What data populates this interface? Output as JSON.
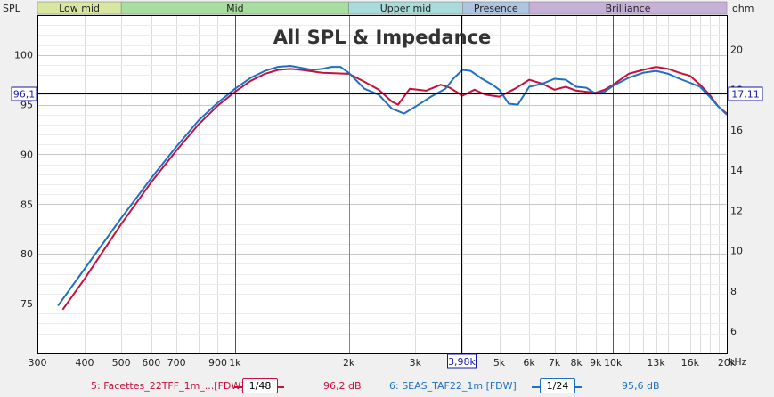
{
  "axes": {
    "left_label": "SPL",
    "right_label": "ohm",
    "x_unit_label": "kHz"
  },
  "bands": [
    {
      "label": "Low mid",
      "color": "#d8e7a0"
    },
    {
      "label": "Mid",
      "color": "#a8dfa0"
    },
    {
      "label": "Upper mid",
      "color": "#a8dcd8"
    },
    {
      "label": "Presence",
      "color": "#aec4e2"
    },
    {
      "label": "Brilliance",
      "color": "#c6b0d8"
    }
  ],
  "cursor": {
    "x_readout": "3,98k",
    "spl_readout": "96,1",
    "ohm_readout": "17,11"
  },
  "legend": [
    {
      "label": "5: Facettes_22TFF_1m_...[FDW]",
      "smoothing": "1/48",
      "value": "96,2 dB",
      "color": "#c8103c"
    },
    {
      "label": "6: SEAS_TAF22_1m [FDW]",
      "smoothing": "1/24",
      "value": "95,6 dB",
      "color": "#1f6fc4"
    }
  ],
  "chart_data": {
    "type": "line",
    "title": "All SPL & Impedance",
    "x_scale": "log",
    "xlim": [
      300,
      20000
    ],
    "ylim": [
      70,
      104
    ],
    "y2lim": [
      4.9,
      21.7
    ],
    "x_ticks": [
      {
        "v": 300,
        "label": "300"
      },
      {
        "v": 400,
        "label": "400"
      },
      {
        "v": 500,
        "label": "500"
      },
      {
        "v": 600,
        "label": "600"
      },
      {
        "v": 700,
        "label": "700"
      },
      {
        "v": 900,
        "label": "900"
      },
      {
        "v": 1000,
        "label": "1k"
      },
      {
        "v": 2000,
        "label": "2k"
      },
      {
        "v": 3000,
        "label": "3k"
      },
      {
        "v": 5000,
        "label": "5k"
      },
      {
        "v": 6000,
        "label": "6k"
      },
      {
        "v": 7000,
        "label": "7k"
      },
      {
        "v": 8000,
        "label": "8k"
      },
      {
        "v": 9000,
        "label": "9k"
      },
      {
        "v": 10000,
        "label": "10k"
      },
      {
        "v": 13000,
        "label": "13k"
      },
      {
        "v": 16000,
        "label": "16k"
      },
      {
        "v": 20000,
        "label": "20k"
      }
    ],
    "y_ticks": [
      75,
      80,
      85,
      90,
      95,
      100
    ],
    "y2_ticks": [
      6,
      8,
      10,
      12,
      14,
      16,
      18,
      20
    ],
    "band_edges": [
      300,
      500,
      2000,
      4000,
      6000,
      20000
    ],
    "cursor_x": 3980,
    "cursor_y": 96.1,
    "series": [
      {
        "name": "5: Facettes_22TFF_1m_...[FDW]",
        "color": "#c8103c",
        "x": [
          350,
          400,
          500,
          600,
          700,
          800,
          900,
          1000,
          1100,
          1200,
          1300,
          1400,
          1500,
          1700,
          2000,
          2200,
          2400,
          2600,
          2700,
          2900,
          3200,
          3500,
          3700,
          4000,
          4300,
          4600,
          5000,
          5500,
          6000,
          6500,
          7000,
          7500,
          8000,
          8500,
          9000,
          9500,
          10000,
          11000,
          12000,
          13000,
          14000,
          15000,
          16000,
          17000,
          18000,
          19000,
          20000
        ],
        "y": [
          74.4,
          77.5,
          83.0,
          87.2,
          90.4,
          93.0,
          94.9,
          96.3,
          97.4,
          98.1,
          98.5,
          98.6,
          98.5,
          98.2,
          98.1,
          97.3,
          96.5,
          95.3,
          95.0,
          96.6,
          96.4,
          97.0,
          96.7,
          95.9,
          96.5,
          96.0,
          95.8,
          96.6,
          97.5,
          97.1,
          96.5,
          96.8,
          96.4,
          96.3,
          96.2,
          96.5,
          97.0,
          98.1,
          98.5,
          98.8,
          98.6,
          98.2,
          97.9,
          97.0,
          96.0,
          94.8,
          94.1
        ]
      },
      {
        "name": "6: SEAS_TAF22_1m [FDW]",
        "color": "#1f6fc4",
        "x": [
          340,
          400,
          500,
          600,
          700,
          800,
          900,
          1000,
          1100,
          1200,
          1300,
          1400,
          1500,
          1600,
          1700,
          1800,
          1900,
          2000,
          2200,
          2400,
          2600,
          2800,
          3000,
          3300,
          3600,
          3800,
          4000,
          4200,
          4500,
          4800,
          5000,
          5300,
          5600,
          6000,
          6500,
          7000,
          7500,
          8000,
          8500,
          9000,
          9500,
          10000,
          11000,
          12000,
          13000,
          14000,
          15000,
          16000,
          17000,
          18000,
          19000,
          20000
        ],
        "y": [
          74.8,
          78.5,
          83.6,
          87.6,
          90.8,
          93.4,
          95.2,
          96.6,
          97.7,
          98.4,
          98.8,
          98.9,
          98.7,
          98.5,
          98.6,
          98.8,
          98.8,
          98.2,
          96.6,
          96.0,
          94.6,
          94.1,
          94.8,
          95.8,
          96.6,
          97.7,
          98.5,
          98.4,
          97.6,
          97.0,
          96.5,
          95.1,
          95.0,
          96.8,
          97.1,
          97.6,
          97.5,
          96.8,
          96.7,
          96.1,
          96.3,
          96.9,
          97.7,
          98.2,
          98.4,
          98.1,
          97.6,
          97.2,
          96.8,
          95.8,
          94.8,
          94.0
        ]
      }
    ]
  }
}
